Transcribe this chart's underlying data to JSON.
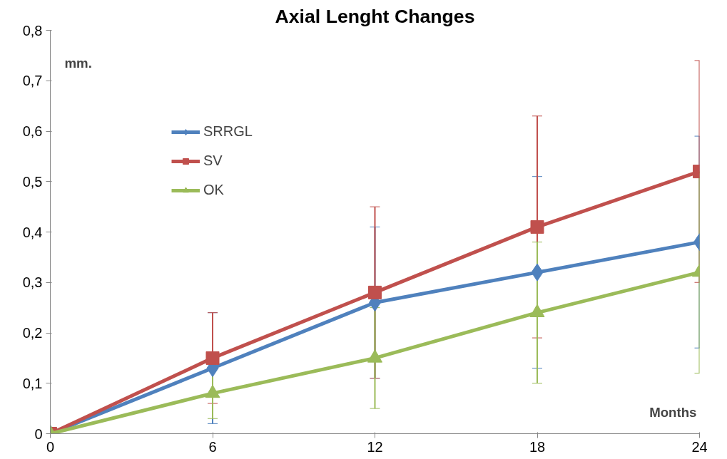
{
  "chart_data": {
    "type": "line",
    "title": "Axial Lenght Changes",
    "xlabel": "Months",
    "ylabel": "mm.",
    "x": [
      0,
      6,
      12,
      18,
      24
    ],
    "series": [
      {
        "name": "SRRGL",
        "color": "#4f81bd",
        "marker": "diamond",
        "values": [
          0,
          0.13,
          0.26,
          0.32,
          0.38
        ],
        "errors": [
          null,
          0.11,
          0.15,
          0.19,
          0.21
        ]
      },
      {
        "name": "SV",
        "color": "#c0504d",
        "marker": "square",
        "values": [
          0,
          0.15,
          0.28,
          0.41,
          0.52
        ],
        "errors": [
          null,
          0.09,
          0.17,
          0.22,
          0.22
        ]
      },
      {
        "name": "OK",
        "color": "#9bbb59",
        "marker": "triangle",
        "values": [
          0,
          0.08,
          0.15,
          0.24,
          0.32
        ],
        "errors": [
          null,
          0.05,
          0.1,
          0.14,
          0.2
        ]
      }
    ],
    "xlim": [
      0,
      24
    ],
    "xticks": [
      0,
      6,
      12,
      18,
      24
    ],
    "ylim": [
      0,
      0.8
    ],
    "yticks": [
      0,
      {
        "value": 0.1,
        "label": "0,1"
      },
      {
        "value": 0.2,
        "label": "0,2"
      },
      {
        "value": 0.3,
        "label": "0,3"
      },
      {
        "value": 0.4,
        "label": "0,4"
      },
      {
        "value": 0.5,
        "label": "0,5"
      },
      {
        "value": 0.6,
        "label": "0,6"
      },
      {
        "value": 0.7,
        "label": "0,7"
      },
      {
        "value": 0.8,
        "label": "0,8"
      }
    ],
    "grid": false,
    "legend": "top left",
    "line_style": "solid"
  }
}
